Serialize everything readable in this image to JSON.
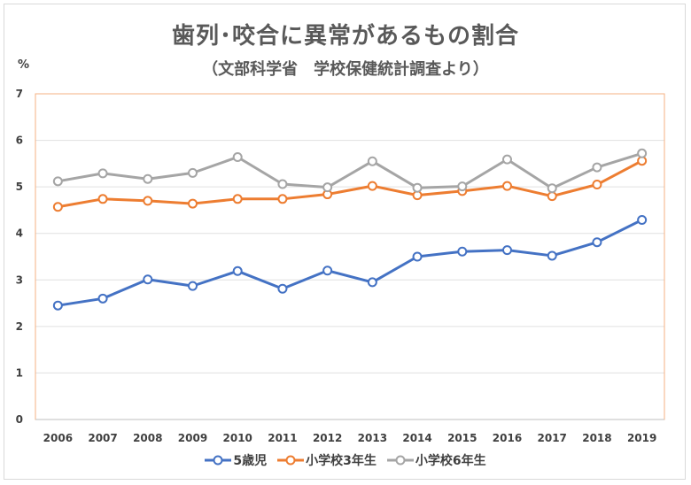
{
  "chart_data": {
    "type": "line",
    "title": "歯列･咬合に異常があるもの割合",
    "subtitle": "（文部科学省　学校保健統計調査より）",
    "ylabel": "%",
    "xlabel": "",
    "ylim": [
      0,
      7
    ],
    "yticks": [
      0,
      1,
      2,
      3,
      4,
      5,
      6,
      7
    ],
    "grid": true,
    "legend_position": "bottom",
    "categories": [
      "2006",
      "2007",
      "2008",
      "2009",
      "2010",
      "2011",
      "2012",
      "2013",
      "2014",
      "2015",
      "2016",
      "2017",
      "2018",
      "2019"
    ],
    "series": [
      {
        "name": "5歳児",
        "color": "#4472c4",
        "values": [
          2.45,
          2.6,
          3.01,
          2.87,
          3.19,
          2.81,
          3.2,
          2.95,
          3.5,
          3.61,
          3.64,
          3.52,
          3.81,
          4.29
        ]
      },
      {
        "name": "小学校3年生",
        "color": "#ed7d31",
        "values": [
          4.57,
          4.74,
          4.7,
          4.64,
          4.74,
          4.74,
          4.84,
          5.02,
          4.82,
          4.91,
          5.02,
          4.8,
          5.05,
          5.56
        ]
      },
      {
        "name": "小学校6年生",
        "color": "#a5a5a5",
        "values": [
          5.12,
          5.29,
          5.17,
          5.3,
          5.64,
          5.06,
          4.99,
          5.55,
          4.98,
          5.01,
          5.59,
          4.97,
          5.42,
          5.72
        ]
      }
    ],
    "plot_border_color": "#f4b183"
  }
}
